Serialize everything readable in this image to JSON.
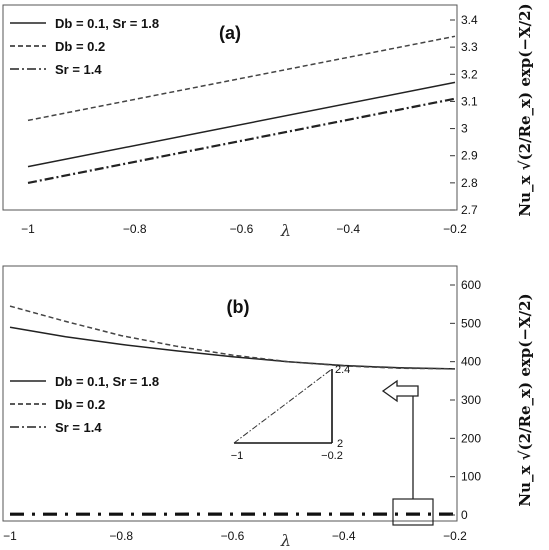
{
  "chart_data": [
    {
      "type": "line",
      "panel_label": "(a)",
      "xlabel": "λ",
      "ylabel": "Nu_x √(2/Re_x) exp(−X/2)",
      "xlim": [
        -1,
        -0.2
      ],
      "ylim": [
        2.7,
        3.4
      ],
      "x_ticks": [
        "−1",
        "−0.8",
        "−0.6",
        "−0.4",
        "−0.2"
      ],
      "y_ticks": [
        "2.7",
        "2.8",
        "2.9",
        "3",
        "3.1",
        "3.2",
        "3.3",
        "3.4"
      ],
      "legend_position": "top-left",
      "series": [
        {
          "name": "Db = 0.1, Sr = 1.8",
          "style": "solid",
          "x": [
            -1,
            -0.2
          ],
          "y": [
            2.86,
            3.17
          ]
        },
        {
          "name": "Db = 0.2",
          "style": "dashed",
          "x": [
            -1,
            -0.2
          ],
          "y": [
            3.03,
            3.34
          ]
        },
        {
          "name": "Sr = 1.4",
          "style": "dash-dot",
          "x": [
            -1,
            -0.2
          ],
          "y": [
            2.8,
            3.11
          ]
        }
      ]
    },
    {
      "type": "line",
      "panel_label": "(b)",
      "xlabel": "λ",
      "ylabel": "Nu_x √(2/Re_x) exp(−X/2)",
      "xlim": [
        -1,
        -0.2
      ],
      "ylim": [
        0,
        600
      ],
      "x_ticks": [
        "−1",
        "−0.8",
        "−0.6",
        "−0.4",
        "−0.2"
      ],
      "y_ticks": [
        "0",
        "100",
        "200",
        "300",
        "400",
        "500",
        "600"
      ],
      "legend_position": "center-left",
      "series": [
        {
          "name": "Db = 0.1, Sr = 1.8",
          "style": "solid",
          "x": [
            -1,
            -0.9,
            -0.8,
            -0.7,
            -0.6,
            -0.5,
            -0.4,
            -0.3,
            -0.2
          ],
          "y": [
            490,
            465,
            445,
            428,
            413,
            400,
            390,
            384,
            381
          ]
        },
        {
          "name": "Db = 0.2",
          "style": "dashed",
          "x": [
            -1,
            -0.9,
            -0.8,
            -0.7,
            -0.6,
            -0.5,
            -0.4,
            -0.3,
            -0.2
          ],
          "y": [
            545,
            505,
            468,
            440,
            417,
            400,
            389,
            383,
            381
          ]
        },
        {
          "name": "Sr = 1.4",
          "style": "dash-dot",
          "x": [
            -1,
            -0.2
          ],
          "y": [
            2.0,
            2.4
          ]
        }
      ],
      "inset": {
        "x_ticks": [
          "−1",
          "−0.2"
        ],
        "y_ticks": [
          "2",
          "2.4"
        ],
        "xlim": [
          -1,
          -0.2
        ],
        "ylim": [
          2,
          2.4
        ]
      }
    }
  ]
}
